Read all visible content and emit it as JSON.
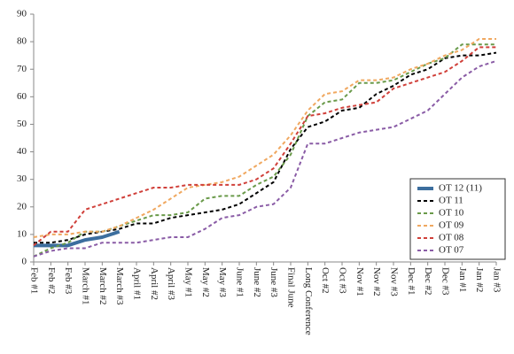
{
  "chart_data": {
    "type": "line",
    "categories": [
      "Feb #1",
      "Feb #2",
      "Feb #3",
      "March #1",
      "March #2",
      "March #3",
      "April #1",
      "April #2",
      "April #3",
      "May #1",
      "May #2",
      "May #3",
      "June #1",
      "June #2",
      "June #3",
      "Final June",
      "Long Conference",
      "Oct #2",
      "Oct #3",
      "Nov #1",
      "Nov #2",
      "Nov #3",
      "Dec #1",
      "Dec #2",
      "Dec #3",
      "Jan #1",
      "Jan #2",
      "Jan #3"
    ],
    "series": [
      {
        "name": "OT 12 (11)",
        "color": "#3c6e9e",
        "dashed": false,
        "values": [
          6,
          6,
          6,
          8,
          9,
          11,
          null,
          null,
          null,
          null,
          null,
          null,
          null,
          null,
          null,
          null,
          null,
          null,
          null,
          null,
          null,
          null,
          null,
          null,
          null,
          null,
          null,
          null
        ]
      },
      {
        "name": "OT 11",
        "color": "#000000",
        "dashed": true,
        "values": [
          7,
          7,
          8,
          10,
          11,
          12,
          14,
          14,
          16,
          17,
          18,
          19,
          21,
          25,
          29,
          41,
          49,
          51,
          55,
          56,
          61,
          64,
          68,
          70,
          74,
          75,
          75,
          76
        ]
      },
      {
        "name": "OT 10",
        "color": "#6a9a4a",
        "dashed": true,
        "values": [
          2,
          5,
          7,
          11,
          11,
          13,
          15,
          17,
          17,
          18,
          23,
          24,
          24,
          28,
          31,
          39,
          53,
          58,
          59,
          65,
          65,
          66,
          69,
          72,
          74,
          79,
          79,
          79
        ]
      },
      {
        "name": "OT 09",
        "color": "#f0a860",
        "dashed": true,
        "values": [
          9,
          10,
          10,
          11,
          11,
          13,
          16,
          19,
          23,
          27,
          28,
          29,
          31,
          35,
          39,
          46,
          55,
          61,
          62,
          66,
          66,
          67,
          70,
          72,
          75,
          77,
          81,
          81
        ]
      },
      {
        "name": "OT 08",
        "color": "#d0403a",
        "dashed": true,
        "values": [
          6,
          11,
          11,
          19,
          21,
          23,
          25,
          27,
          27,
          28,
          28,
          28,
          28,
          30,
          34,
          43,
          53,
          54,
          56,
          57,
          58,
          63,
          65,
          67,
          69,
          73,
          78,
          78
        ]
      },
      {
        "name": "OT 07",
        "color": "#8a5ca6",
        "dashed": true,
        "values": [
          2,
          4,
          5,
          5,
          7,
          7,
          7,
          8,
          9,
          9,
          12,
          16,
          17,
          20,
          21,
          27,
          43,
          43,
          45,
          47,
          48,
          49,
          52,
          55,
          61,
          67,
          71,
          73
        ]
      }
    ],
    "ylim": [
      0,
      90
    ],
    "yticks": [
      0,
      10,
      20,
      30,
      40,
      50,
      60,
      70,
      80,
      90
    ],
    "grid": false,
    "legend": "lower right"
  }
}
